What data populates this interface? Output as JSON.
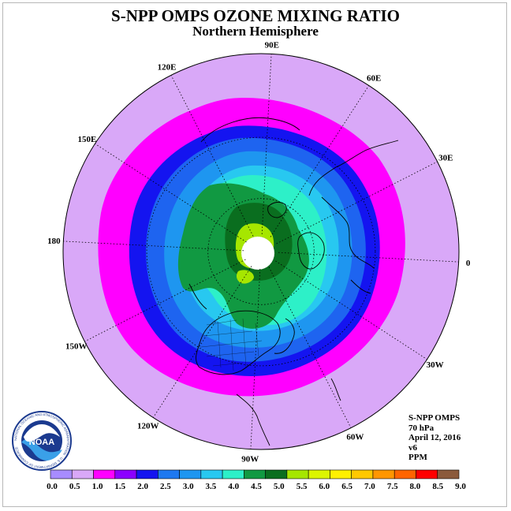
{
  "header": {
    "title": "S-NPP OMPS OZONE MIXING RATIO",
    "subtitle": "Northern Hemisphere"
  },
  "map": {
    "projection": "north polar stereographic",
    "longitude_labels": [
      {
        "text": "90E",
        "lon": 90
      },
      {
        "text": "60E",
        "lon": 60
      },
      {
        "text": "30E",
        "lon": 30
      },
      {
        "text": "0",
        "lon": 0
      },
      {
        "text": "30W",
        "lon": -30
      },
      {
        "text": "60W",
        "lon": -60
      },
      {
        "text": "90W",
        "lon": -90
      },
      {
        "text": "120W",
        "lon": -120
      },
      {
        "text": "150W",
        "lon": -150
      },
      {
        "text": "180",
        "lon": 180
      },
      {
        "text": "150E",
        "lon": 150
      },
      {
        "text": "120E",
        "lon": 120
      }
    ],
    "graticule_latitudes": [
      30,
      60
    ],
    "field_colors": {
      "outer": "#d9a8f8",
      "ring_1_5": "#ff00ff",
      "ring_2_0": "#1414f0",
      "ring_2_5": "#1e64f0",
      "ring_3_0": "#1e96f0",
      "ring_3_5": "#28c8f0",
      "ring_4_0": "#2df0c8",
      "ring_4_5": "#119942",
      "ring_5_0": "#0a6e1f",
      "ring_5_5": "#a6e600",
      "no_data": "#ffffff"
    }
  },
  "colorbar": {
    "ticks": [
      "0.0",
      "0.5",
      "1.0",
      "1.5",
      "2.0",
      "2.5",
      "3.0",
      "3.5",
      "4.0",
      "4.5",
      "5.0",
      "5.5",
      "6.0",
      "6.5",
      "7.0",
      "7.5",
      "8.0",
      "8.5",
      "9.0"
    ],
    "colors": [
      "#a78cff",
      "#d9a8f8",
      "#ff00ff",
      "#8c00ff",
      "#1414f0",
      "#1e78f0",
      "#1e96f0",
      "#28c8f0",
      "#2df0c8",
      "#119942",
      "#0a6e1f",
      "#a6e600",
      "#dcf500",
      "#fff000",
      "#ffc800",
      "#ff9600",
      "#ff6400",
      "#ff0000",
      "#8b5a3c"
    ]
  },
  "info": {
    "line1": "S-NPP OMPS",
    "line2": "70 hPa",
    "line3": "April 12, 2016",
    "line4": "v6",
    "line5": "PPM"
  },
  "logo": {
    "icon": "noaa-logo",
    "center_text": "NOAA",
    "ring_text": "NATIONAL OCEANIC AND ATMOSPHERIC ADMINISTRATION · U.S. DEPARTMENT OF COMMERCE"
  }
}
